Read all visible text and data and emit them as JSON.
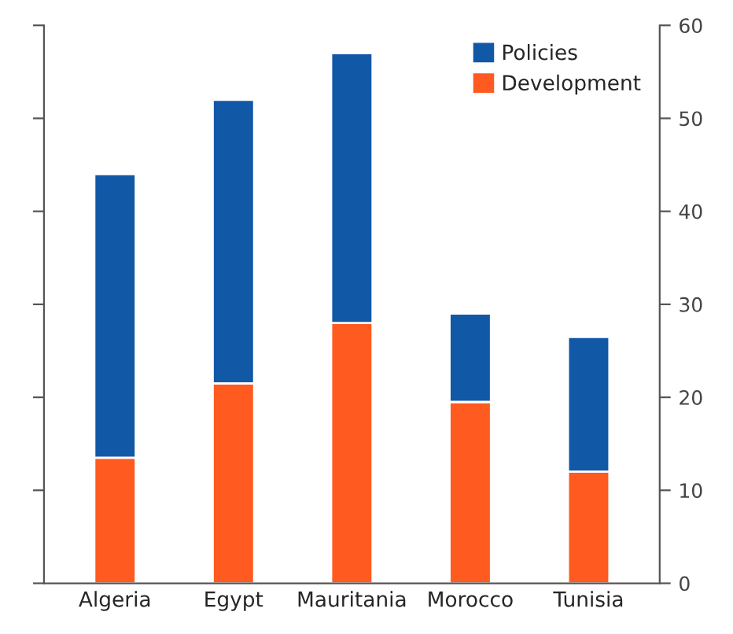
{
  "chart_data": {
    "type": "bar",
    "stacked": true,
    "categories": [
      "Algeria",
      "Egypt",
      "Mauritania",
      "Morocco",
      "Tunisia"
    ],
    "series": [
      {
        "name": "Development",
        "color": "#ff5a1f",
        "values": [
          13.5,
          21.5,
          28,
          19.5,
          12
        ]
      },
      {
        "name": "Policies",
        "color": "#1158a7",
        "values": [
          30.5,
          30.5,
          29,
          9.5,
          14.5
        ]
      }
    ],
    "ylim": [
      0,
      60
    ],
    "yticks": [
      0,
      10,
      20,
      30,
      40,
      50,
      60
    ],
    "legend": "top right"
  }
}
